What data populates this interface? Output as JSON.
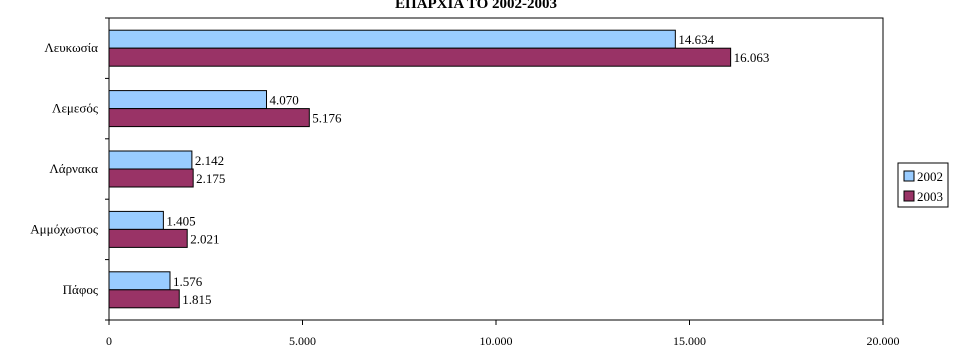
{
  "chart_data": {
    "type": "bar",
    "orientation": "horizontal",
    "title": "ΕΠΑΡΧΙΑ ΤΟ 2002-2003",
    "categories": [
      "Λευκωσία",
      "Λεμεσός",
      "Λάρνακα",
      "Αμμόχωστος",
      "Πάφος"
    ],
    "series": [
      {
        "name": "2002",
        "values": [
          14634,
          4070,
          2142,
          1405,
          1576
        ],
        "labels": [
          "14.634",
          "4.070",
          "2.142",
          "1.405",
          "1.576"
        ],
        "color": "#99CCFF"
      },
      {
        "name": "2003",
        "values": [
          16063,
          5176,
          2175,
          2021,
          1815
        ],
        "labels": [
          "16.063",
          "5.176",
          "2.175",
          "2.021",
          "1.815"
        ],
        "color": "#993366"
      }
    ],
    "xlim": [
      0,
      20000
    ],
    "xticks": [
      0,
      5000,
      10000,
      15000,
      20000
    ],
    "xtick_labels": [
      "0",
      "5.000",
      "10.000",
      "15.000",
      "20.000"
    ],
    "grid": false,
    "legend_position": "right"
  }
}
